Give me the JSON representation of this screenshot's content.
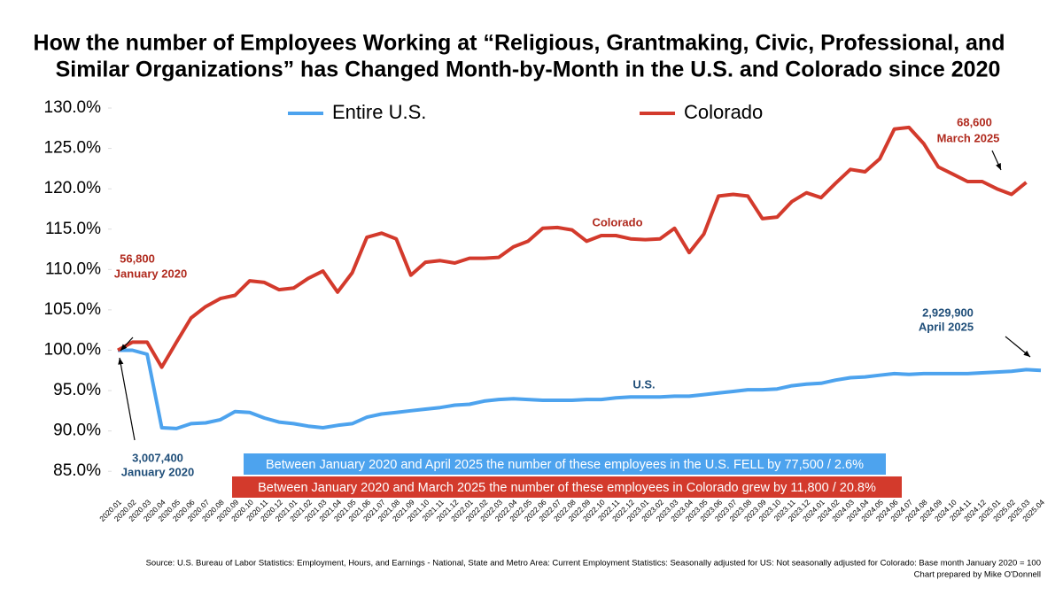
{
  "chart_data": {
    "type": "line",
    "title": [
      "How the number of Employees Working at “Religious, Grantmaking, Civic, Professional, and",
      "Similar Organizations” has Changed Month-by-Month in the U.S. and Colorado since 2020"
    ],
    "categories": [
      "2020.01",
      "2020.02",
      "2020.03",
      "2020.04",
      "2020.05",
      "2020.06",
      "2020.07",
      "2020.08",
      "2020.09",
      "2020.10",
      "2020.11",
      "2020.12",
      "2021.01",
      "2021.02",
      "2021.03",
      "2021.04",
      "2021.05",
      "2021.06",
      "2021.07",
      "2021.08",
      "2021.09",
      "2021.10",
      "2021.11",
      "2021.12",
      "2022.01",
      "2022.02",
      "2022.03",
      "2022.04",
      "2022.05",
      "2022.06",
      "2022.07",
      "2022.08",
      "2022.09",
      "2022.10",
      "2022.11",
      "2022.12",
      "2023.01",
      "2023.02",
      "2023.03",
      "2023.04",
      "2023.05",
      "2023.06",
      "2023.07",
      "2023.08",
      "2023.09",
      "2023.10",
      "2023.11",
      "2023.12",
      "2024.01",
      "2024.02",
      "2024.03",
      "2024.04",
      "2024.05",
      "2024.06",
      "2024.07",
      "2024.08",
      "2024.09",
      "2024.10",
      "2024.11",
      "2024.12",
      "2025.01",
      "2025.02",
      "2025.03",
      "2025.04"
    ],
    "series": [
      {
        "name": "Entire U.S.",
        "color": "#4da3ee",
        "values": [
          100.0,
          100.0,
          99.5,
          90.4,
          90.3,
          90.9,
          91.0,
          91.4,
          92.4,
          92.3,
          91.6,
          91.1,
          90.9,
          90.6,
          90.4,
          90.7,
          90.9,
          91.7,
          92.1,
          92.3,
          92.5,
          92.7,
          92.9,
          93.2,
          93.3,
          93.7,
          93.9,
          94.0,
          93.9,
          93.8,
          93.8,
          93.8,
          93.9,
          93.9,
          94.1,
          94.2,
          94.2,
          94.2,
          94.3,
          94.3,
          94.5,
          94.7,
          94.9,
          95.1,
          95.1,
          95.2,
          95.6,
          95.8,
          95.9,
          96.3,
          96.6,
          96.7,
          96.9,
          97.1,
          97.0,
          97.1,
          97.1,
          97.1,
          97.1,
          97.2,
          97.3,
          97.4,
          97.6,
          97.5
        ]
      },
      {
        "name": "Colorado",
        "color": "#d33a2c",
        "values": [
          100.0,
          101.0,
          101.0,
          97.9,
          101.0,
          104.0,
          105.4,
          106.4,
          106.8,
          108.6,
          108.4,
          107.5,
          107.7,
          108.9,
          109.8,
          107.2,
          109.6,
          114.0,
          114.5,
          113.8,
          109.3,
          110.9,
          111.1,
          110.8,
          111.4,
          111.4,
          111.5,
          112.8,
          113.5,
          115.1,
          115.2,
          114.9,
          113.5,
          114.2,
          114.2,
          113.8,
          113.7,
          113.8,
          115.1,
          112.1,
          114.4,
          119.1,
          119.3,
          119.1,
          116.3,
          116.5,
          118.4,
          119.5,
          118.9,
          120.7,
          122.4,
          122.1,
          123.7,
          127.4,
          127.6,
          125.6,
          122.7,
          121.8,
          120.9,
          120.9,
          120.0,
          119.3,
          120.8,
          null
        ]
      }
    ],
    "ylim": [
      82.5,
      130
    ],
    "yticks": [
      {
        "value": 85,
        "label": "85.0%"
      },
      {
        "value": 90,
        "label": "90.0%"
      },
      {
        "value": 95,
        "label": "95.0%"
      },
      {
        "value": 100,
        "label": "100.0%"
      },
      {
        "value": 105,
        "label": "105.0%"
      },
      {
        "value": 110,
        "label": "110.0%"
      },
      {
        "value": 115,
        "label": "115.0%"
      },
      {
        "value": 120,
        "label": "120.0%"
      },
      {
        "value": 125,
        "label": "125.0%"
      },
      {
        "value": 130,
        "label": "130.0%"
      }
    ],
    "grid": false,
    "annotations": [
      "56,800",
      "January 2020",
      "68,600",
      "March 2025",
      "3,007,400",
      "January 2020",
      "2,929,900",
      "April 2025",
      "Colorado",
      "U.S."
    ],
    "notes": [
      "Between January 2020 and April 2025 the number of these employees in the U.S. FELL by 77,500 / 2.6%",
      "Between January 2020 and March 2025 the number of these employees in Colorado grew by 11,800 / 20.8%"
    ],
    "source": "Source: U.S. Bureau of Labor Statistics: Employment, Hours, and Earnings - National, State and Metro Area: Current Employment Statistics: Seasonally adjusted for US: Not seasonally adjusted for Colorado: Base month January 2020 = 100",
    "credit": "Chart prepared by Mike O'Donnell"
  }
}
